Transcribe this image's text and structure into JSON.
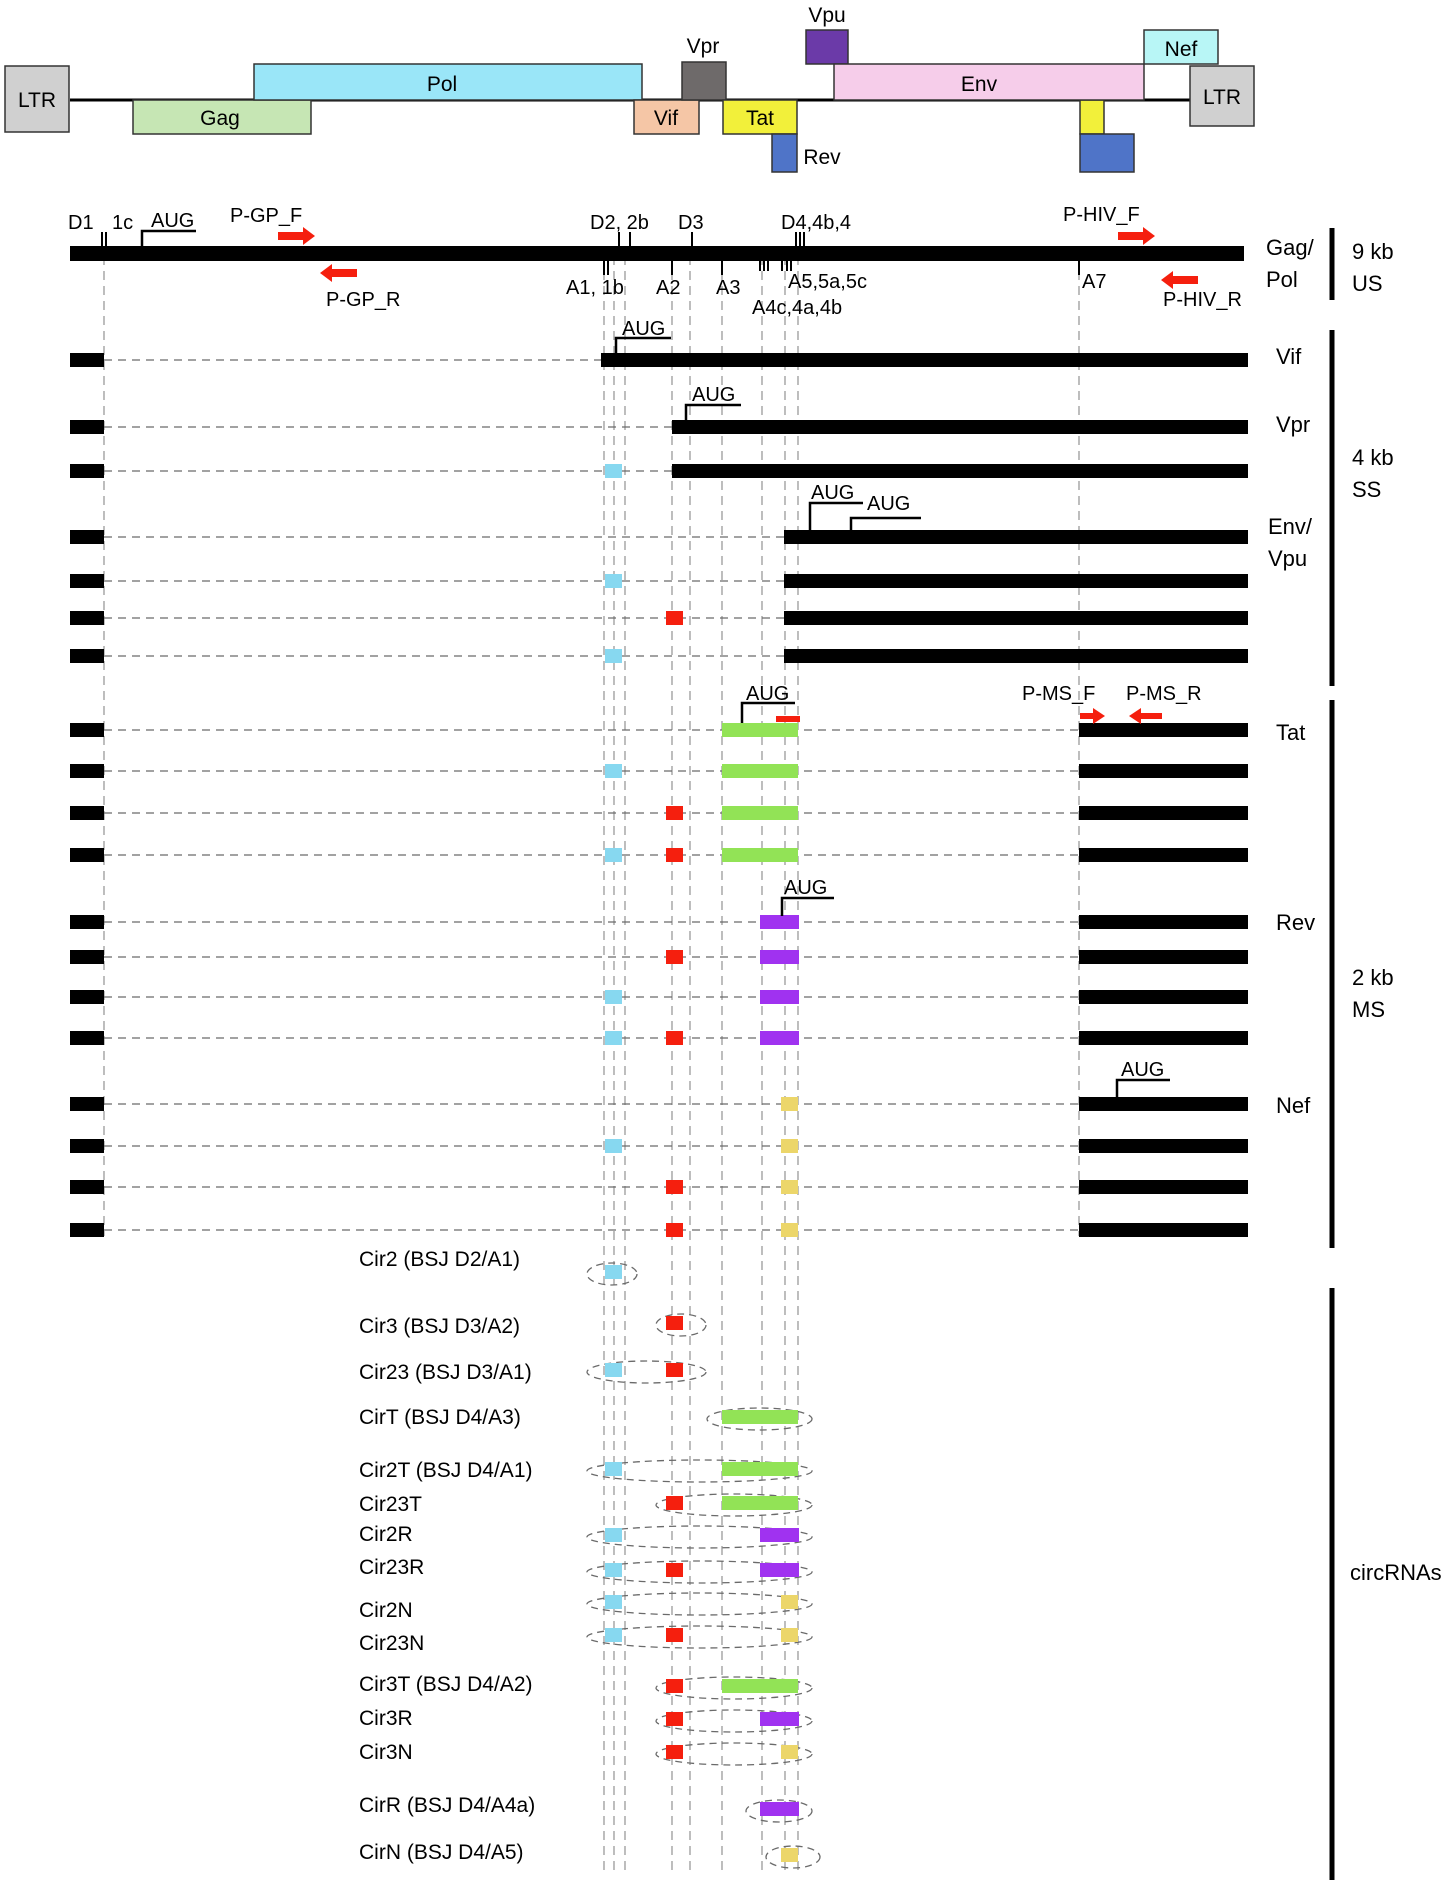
{
  "genome_map": {
    "genes": [
      {
        "name": "LTR",
        "color": "#d0d0d0"
      },
      {
        "name": "Gag",
        "color": "#c6e6b4"
      },
      {
        "name": "Pol",
        "color": "#9ae6f8"
      },
      {
        "name": "Vif",
        "color": "#f5c6a6"
      },
      {
        "name": "Vpr",
        "color": "#6e6a6a"
      },
      {
        "name": "Tat",
        "color": "#f2f03a"
      },
      {
        "name": "Rev",
        "color": "#4f74c8"
      },
      {
        "name": "Vpu",
        "color": "#6b3aa8"
      },
      {
        "name": "Env",
        "color": "#f6cdea"
      },
      {
        "name": "Nef",
        "color": "#b8f6f6"
      },
      {
        "name": "LTR",
        "color": "#d0d0d0"
      }
    ]
  },
  "splice_sites": {
    "top": [
      "D1",
      "1c",
      "D2, 2b",
      "D3",
      "D4,4b,4"
    ],
    "bottom": [
      "A1, 1b",
      "A2",
      "A3",
      "A5,5a,5c",
      "A4c,4a,4b",
      "A7"
    ]
  },
  "start_codon": "AUG",
  "primers": [
    "P-GP_F",
    "P-GP_R",
    "P-HIV_F",
    "P-HIV_R",
    "P-MS_F",
    "P-MS_R"
  ],
  "transcript_labels": [
    "Gag/\nPol",
    "Vif",
    "Vpr",
    "Env/\nVpu",
    "Tat",
    "Rev",
    "Nef"
  ],
  "classes": [
    {
      "size": "9 kb",
      "type": "US"
    },
    {
      "size": "4 kb",
      "type": "SS"
    },
    {
      "size": "2 kb",
      "type": "MS"
    },
    {
      "size": "",
      "type": "circRNAs"
    }
  ],
  "exon_colors": {
    "exon2": "#87d8f0",
    "exon3": "#f51f0e",
    "tat": "#92e356",
    "rev": "#a032f0",
    "nef": "#ecd66a",
    "black": "#000000",
    "primer": "#f51f0e"
  },
  "circrnas": [
    {
      "name": "Cir2",
      "bsj": "(BSJ D2/A1)"
    },
    {
      "name": "Cir3",
      "bsj": "(BSJ D3/A2)"
    },
    {
      "name": "Cir23",
      "bsj": "(BSJ D3/A1)"
    },
    {
      "name": "CirT",
      "bsj": "(BSJ D4/A3)"
    },
    {
      "name": "Cir2T",
      "bsj": "(BSJ D4/A1)"
    },
    {
      "name": "Cir23T",
      "bsj": ""
    },
    {
      "name": "Cir2R",
      "bsj": ""
    },
    {
      "name": "Cir23R",
      "bsj": ""
    },
    {
      "name": "Cir2N",
      "bsj": ""
    },
    {
      "name": "Cir23N",
      "bsj": ""
    },
    {
      "name": "Cir3T",
      "bsj": "(BSJ D4/A2)"
    },
    {
      "name": "Cir3R",
      "bsj": ""
    },
    {
      "name": "Cir3N",
      "bsj": ""
    },
    {
      "name": "CirR",
      "bsj": "(BSJ D4/A4a)"
    },
    {
      "name": "CirN",
      "bsj": "(BSJ D4/A5)"
    }
  ]
}
